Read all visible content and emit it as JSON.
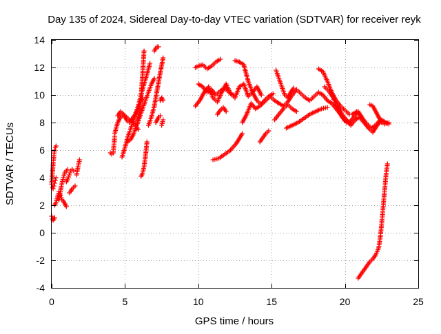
{
  "chart_data": {
    "type": "scatter",
    "title": "Day 135 of 2024, Sidereal Day-to-day VTEC variation (SDTVAR) for receiver reyk",
    "xlabel": "GPS time / hours",
    "ylabel": "SDTVAR / TECUs",
    "xlim": [
      0,
      25
    ],
    "ylim": [
      -4,
      14
    ],
    "xticks": [
      0,
      5,
      10,
      15,
      20,
      25
    ],
    "yticks": [
      -4,
      -2,
      0,
      2,
      4,
      6,
      8,
      10,
      12,
      14
    ],
    "grid": true,
    "marker": "+",
    "color": "#ff0000",
    "segments": [
      {
        "x": [
          0.0,
          0.05,
          0.1,
          0.15,
          0.2
        ],
        "y": [
          1.2,
          1.0,
          0.9,
          1.0,
          1.1
        ]
      },
      {
        "x": [
          0.0,
          0.05,
          0.1,
          0.15,
          0.2,
          0.25,
          0.3
        ],
        "y": [
          3.5,
          4.3,
          5.0,
          5.6,
          6.0,
          6.2,
          6.3
        ]
      },
      {
        "x": [
          0.05,
          0.1,
          0.15,
          0.2,
          0.25,
          0.3
        ],
        "y": [
          3.3,
          3.2,
          3.4,
          3.6,
          3.8,
          4.0
        ]
      },
      {
        "x": [
          0.2,
          0.3,
          0.4,
          0.5,
          0.6,
          0.7
        ],
        "y": [
          2.0,
          2.2,
          2.6,
          3.0,
          2.7,
          2.4
        ]
      },
      {
        "x": [
          0.5,
          0.6,
          0.7,
          0.8,
          0.9,
          1.0,
          1.1
        ],
        "y": [
          2.4,
          3.0,
          3.6,
          4.0,
          4.4,
          4.5,
          4.6
        ]
      },
      {
        "x": [
          1.0,
          1.1,
          1.2,
          1.3,
          1.4,
          1.5
        ],
        "y": [
          3.7,
          3.9,
          4.2,
          4.5,
          4.6,
          4.5
        ]
      },
      {
        "x": [
          1.2,
          1.3,
          1.4,
          1.5,
          1.6
        ],
        "y": [
          2.9,
          3.0,
          3.2,
          3.3,
          3.4
        ]
      },
      {
        "x": [
          0.7,
          0.8,
          0.9,
          1.0
        ],
        "y": [
          2.4,
          2.3,
          2.1,
          1.9
        ]
      },
      {
        "x": [
          1.7,
          1.8,
          1.9
        ],
        "y": [
          4.2,
          4.8,
          5.3
        ]
      },
      {
        "x": [
          4.0,
          4.1,
          4.2,
          4.3
        ],
        "y": [
          5.8,
          5.7,
          5.8,
          7.0
        ]
      },
      {
        "x": [
          4.3,
          4.5,
          4.7,
          4.9,
          5.1,
          5.3,
          5.5,
          5.7,
          5.9
        ],
        "y": [
          7.2,
          8.0,
          8.4,
          8.6,
          8.4,
          8.2,
          8.0,
          7.8,
          7.5
        ]
      },
      {
        "x": [
          4.5,
          4.7,
          4.9,
          5.1,
          5.3,
          5.5,
          5.7
        ],
        "y": [
          8.5,
          8.8,
          8.6,
          8.2,
          8.0,
          8.3,
          8.6
        ]
      },
      {
        "x": [
          4.8,
          5.0,
          5.2,
          5.4,
          5.6,
          5.8,
          6.0,
          6.2
        ],
        "y": [
          5.5,
          6.2,
          7.0,
          7.6,
          8.2,
          8.8,
          9.3,
          9.8
        ]
      },
      {
        "x": [
          5.2,
          5.4,
          5.6,
          5.8,
          6.0,
          6.1,
          6.2,
          6.3
        ],
        "y": [
          6.6,
          6.8,
          7.2,
          7.8,
          8.8,
          10.0,
          11.5,
          13.2
        ]
      },
      {
        "x": [
          5.7,
          5.9,
          6.1,
          6.3,
          6.5,
          6.7
        ],
        "y": [
          8.6,
          9.2,
          10.0,
          10.8,
          11.5,
          12.3
        ]
      },
      {
        "x": [
          5.8,
          6.0,
          6.2,
          6.4,
          6.6,
          6.8,
          7.0
        ],
        "y": [
          7.8,
          8.4,
          9.0,
          9.6,
          10.2,
          10.8,
          11.2
        ]
      },
      {
        "x": [
          6.1,
          6.2,
          6.3,
          6.4,
          6.5
        ],
        "y": [
          4.1,
          4.3,
          4.8,
          5.6,
          6.6
        ]
      },
      {
        "x": [
          6.6,
          6.8,
          7.0,
          7.2,
          7.4,
          7.6
        ],
        "y": [
          7.8,
          8.4,
          9.2,
          10.4,
          11.6,
          12.7
        ]
      },
      {
        "x": [
          7.0,
          7.1,
          7.2,
          7.3
        ],
        "y": [
          13.2,
          13.4,
          13.5,
          13.5
        ]
      },
      {
        "x": [
          7.1,
          7.2,
          7.3,
          7.4
        ],
        "y": [
          8.0,
          8.2,
          8.4,
          8.5
        ]
      },
      {
        "x": [
          7.4,
          7.5,
          7.6
        ],
        "y": [
          9.6,
          9.8,
          9.6
        ]
      },
      {
        "x": [
          7.5,
          7.6
        ],
        "y": [
          7.8,
          8.2
        ]
      },
      {
        "x": [
          9.8,
          10.0,
          10.3,
          10.6,
          10.9,
          11.2,
          11.5
        ],
        "y": [
          12.0,
          12.1,
          12.2,
          11.9,
          12.1,
          12.4,
          12.6
        ]
      },
      {
        "x": [
          9.8,
          10.1,
          10.4,
          10.7,
          11.0,
          11.3,
          11.6,
          11.9,
          12.2,
          12.5,
          12.8,
          13.1,
          13.4,
          13.7,
          14.0,
          14.3
        ],
        "y": [
          9.2,
          9.6,
          10.2,
          10.6,
          9.8,
          9.5,
          10.2,
          10.8,
          10.1,
          9.8,
          10.6,
          10.8,
          9.9,
          10.2,
          10.6,
          10.0
        ]
      },
      {
        "x": [
          10.0,
          10.3,
          10.6,
          10.9,
          11.2,
          11.5,
          11.8,
          12.1,
          12.4
        ],
        "y": [
          10.8,
          10.6,
          10.2,
          10.4,
          10.0,
          10.3,
          10.5,
          10.2,
          10.0
        ]
      },
      {
        "x": [
          11.3,
          11.5,
          11.7,
          11.9
        ],
        "y": [
          8.6,
          8.9,
          9.1,
          8.8
        ]
      },
      {
        "x": [
          11.0,
          11.4,
          11.8,
          12.2,
          12.6,
          13.0
        ],
        "y": [
          5.3,
          5.4,
          5.7,
          6.0,
          6.5,
          7.2
        ]
      },
      {
        "x": [
          12.5,
          12.8,
          13.1,
          13.4,
          13.7,
          14.0,
          14.3,
          14.6,
          14.9,
          15.2,
          15.5,
          15.8,
          16.1,
          16.4,
          16.7,
          17.0,
          17.3,
          17.6,
          17.9,
          18.2,
          18.5,
          18.8,
          19.1,
          19.4,
          19.7,
          20.0,
          20.3,
          20.6,
          20.9,
          21.2,
          21.5,
          21.8,
          22.1,
          22.4,
          22.7,
          23.0
        ],
        "y": [
          12.5,
          12.4,
          12.2,
          11.0,
          10.2,
          9.6,
          9.3,
          9.6,
          9.9,
          9.6,
          9.4,
          9.2,
          9.5,
          10.0,
          10.4,
          10.1,
          9.8,
          9.6,
          9.9,
          10.2,
          10.0,
          9.6,
          9.4,
          9.0,
          8.6,
          8.2,
          8.0,
          8.4,
          8.8,
          8.3,
          7.9,
          7.6,
          7.8,
          8.2,
          7.9,
          8.0
        ]
      },
      {
        "x": [
          13.0,
          13.3,
          13.6,
          13.9,
          14.2,
          14.5,
          14.8,
          15.1
        ],
        "y": [
          8.0,
          8.6,
          9.4,
          9.0,
          9.2,
          9.6,
          9.9,
          10.1
        ]
      },
      {
        "x": [
          14.2,
          14.4,
          14.6,
          14.8
        ],
        "y": [
          6.6,
          6.9,
          7.2,
          7.4
        ]
      },
      {
        "x": [
          15.3,
          15.5,
          15.7,
          15.9,
          16.1,
          16.3,
          16.5
        ],
        "y": [
          11.8,
          11.2,
          10.6,
          10.0,
          9.8,
          10.2,
          10.5
        ]
      },
      {
        "x": [
          15.2,
          15.5,
          15.8,
          16.1,
          16.4,
          16.7
        ],
        "y": [
          8.2,
          8.6,
          9.0,
          9.3,
          9.0,
          8.8
        ]
      },
      {
        "x": [
          16.0,
          16.4,
          16.8,
          17.2,
          17.6,
          18.0,
          18.4,
          18.8
        ],
        "y": [
          7.6,
          7.8,
          8.0,
          8.3,
          8.6,
          8.8,
          9.0,
          9.1
        ]
      },
      {
        "x": [
          18.2,
          18.5,
          18.8,
          19.1,
          19.4,
          19.7,
          20.0,
          20.3
        ],
        "y": [
          11.9,
          11.7,
          11.0,
          10.2,
          9.6,
          9.2,
          8.9,
          8.6
        ]
      },
      {
        "x": [
          18.6,
          18.9,
          19.2,
          19.5,
          19.8,
          20.1
        ],
        "y": [
          10.6,
          10.3,
          9.8,
          9.0,
          8.4,
          8.0
        ]
      },
      {
        "x": [
          19.5,
          19.8,
          20.1,
          20.4,
          20.7,
          21.0,
          21.3,
          21.6,
          21.9,
          22.2,
          22.5,
          22.8,
          23.0
        ],
        "y": [
          9.2,
          8.6,
          8.2,
          7.8,
          8.2,
          8.4,
          8.0,
          7.6,
          7.3,
          7.8,
          8.2,
          8.0,
          7.9
        ]
      },
      {
        "x": [
          20.5,
          20.8,
          21.1
        ],
        "y": [
          8.6,
          8.8,
          8.5
        ]
      },
      {
        "x": [
          21.7,
          21.9,
          22.1,
          22.3,
          22.5
        ],
        "y": [
          9.3,
          9.2,
          8.8,
          8.4,
          8.0
        ]
      },
      {
        "x": [
          20.9,
          21.1,
          21.3,
          21.5,
          21.7,
          21.9,
          22.1,
          22.3,
          22.4,
          22.5,
          22.6,
          22.7,
          22.8,
          22.9
        ],
        "y": [
          -3.3,
          -3.0,
          -2.7,
          -2.4,
          -2.1,
          -1.9,
          -1.6,
          -1.1,
          -0.4,
          0.6,
          1.8,
          3.0,
          4.2,
          5.0
        ]
      }
    ]
  }
}
